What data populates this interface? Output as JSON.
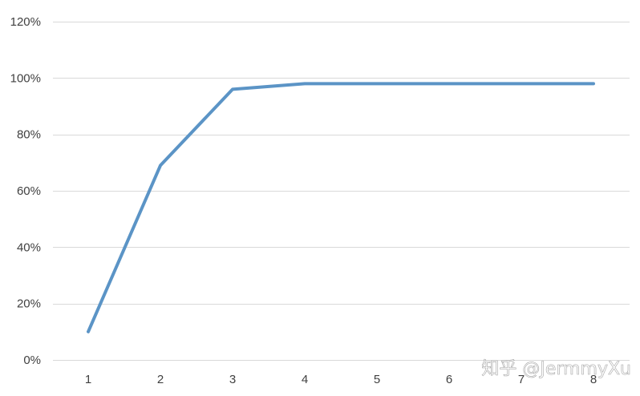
{
  "chart_data": {
    "type": "line",
    "title": "",
    "xlabel": "",
    "ylabel": "",
    "categories": [
      "1",
      "2",
      "3",
      "4",
      "5",
      "6",
      "7",
      "8"
    ],
    "x": [
      1,
      2,
      3,
      4,
      5,
      6,
      7,
      8
    ],
    "series": [
      {
        "values": [
          10,
          69,
          96,
          98,
          98,
          98,
          98,
          98
        ],
        "color": "#5b94c6"
      }
    ],
    "ylim": [
      0,
      120
    ],
    "yticks": [
      0,
      20,
      40,
      60,
      80,
      100,
      120
    ],
    "ytick_labels": [
      "0%",
      "20%",
      "40%",
      "60%",
      "80%",
      "100%",
      "120%"
    ],
    "grid": true,
    "legend": "none"
  },
  "watermark": {
    "text": "知乎 @JermmyXu"
  }
}
